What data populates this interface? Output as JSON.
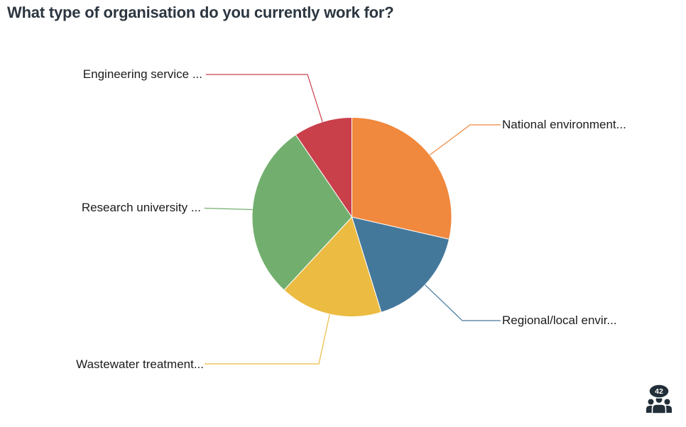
{
  "chart_data": {
    "type": "pie",
    "title": "What type of organisation do you currently work for?",
    "direction": "clockwise",
    "start_angle_deg": 0,
    "legend_position": "callout-labels",
    "total": 42,
    "slices": [
      {
        "label": "National environment...",
        "value": 12,
        "percent": 28.6,
        "color": "#F0883D"
      },
      {
        "label": "Regional/local envir...",
        "value": 7,
        "percent": 16.7,
        "color": "#44789B"
      },
      {
        "label": "Wastewater treatment...",
        "value": 7,
        "percent": 16.7,
        "color": "#ECBB42"
      },
      {
        "label": "Research university ...",
        "value": 12,
        "percent": 28.6,
        "color": "#72AF6E"
      },
      {
        "label": "Engineering service ...",
        "value": 4,
        "percent": 9.5,
        "color": "#C9404B"
      }
    ]
  },
  "respondents": {
    "count": 42,
    "icon": "people-group-icon",
    "badge_color": "#222E38",
    "text_color": "#FFFFFF"
  },
  "colors": {
    "background": "#FFFFFF",
    "title_text": "#2C3640",
    "label_text": "#1C1C1C"
  }
}
